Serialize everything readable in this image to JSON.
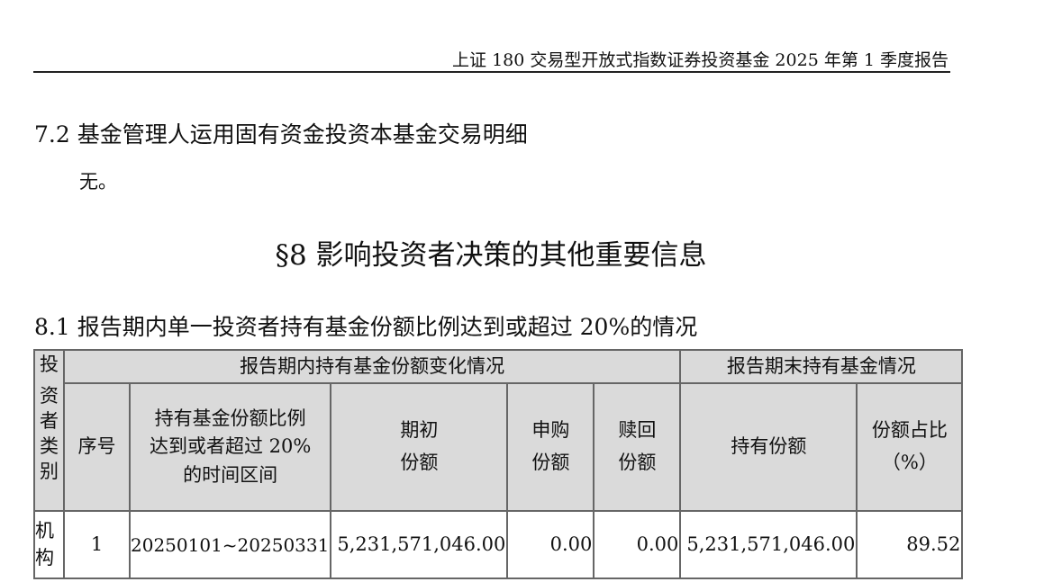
{
  "running_header": "上证 180 交易型开放式指数证券投资基金 2025 年第 1 季度报告",
  "section_7_2": {
    "heading": "7.2 基金管理人运用固有资金投资本基金交易明细",
    "body": "无。"
  },
  "section_8": {
    "title": "§8 影响投资者决策的其他重要信息"
  },
  "section_8_1": {
    "heading": "8.1 报告期内单一投资者持有基金份额比例达到或超过 20%的情况",
    "table": {
      "col_investor_type": "投资者类别",
      "group_during": "报告期内持有基金份额变化情况",
      "group_end": "报告期末持有基金情况",
      "headers": [
        "序号",
        "持有基金份额比例达到或者超过 20%的时间区间",
        "期初份额",
        "申购份额",
        "赎回份额",
        "持有份额",
        "份额占比（%）"
      ],
      "header_lines": [
        [
          "序号"
        ],
        [
          "持有基金份额比例",
          "达到或者超过 20%",
          "的时间区间"
        ],
        [
          "期初",
          "份额"
        ],
        [
          "申购",
          "份额"
        ],
        [
          "赎回",
          "份额"
        ],
        [
          "持有份额"
        ],
        [
          "份额占比",
          "（%）"
        ]
      ],
      "rows": [
        {
          "investor_type": "机构",
          "no": "1",
          "period": "20250101~20250331",
          "opening": "5,231,571,046.00",
          "subscribed": "0.00",
          "redeemed": "0.00",
          "held": "5,231,571,046.00",
          "ratio": "89.52"
        }
      ]
    }
  }
}
